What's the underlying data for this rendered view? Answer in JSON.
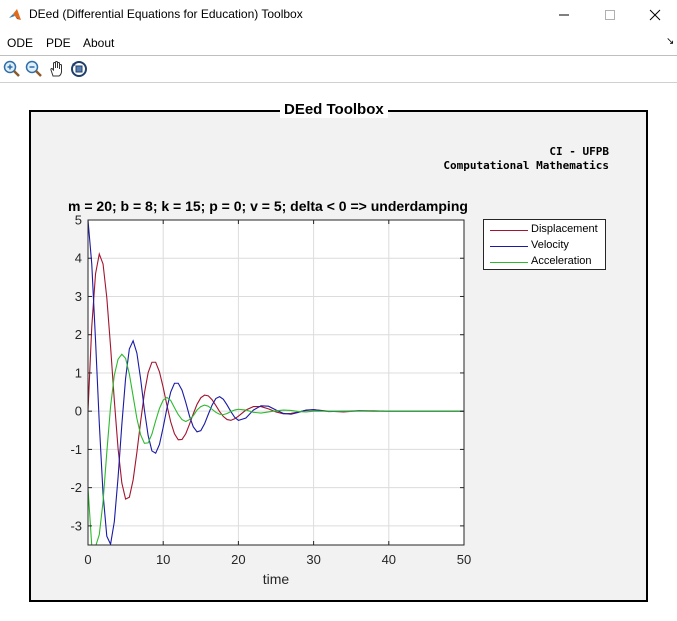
{
  "window": {
    "title": "DEed (Differential Equations for Education) Toolbox",
    "minimize_glyph": "—",
    "maximize_glyph": "☐",
    "close_glyph": "✕"
  },
  "menu": {
    "items": [
      {
        "label": "ODE"
      },
      {
        "label": "PDE"
      },
      {
        "label": "About"
      }
    ],
    "overflow_glyph": "↘"
  },
  "toolbar": {
    "buttons": [
      {
        "icon": "zoom-in-icon"
      },
      {
        "icon": "zoom-out-icon"
      },
      {
        "icon": "pan-hand-icon"
      },
      {
        "icon": "rotate-3d-icon"
      }
    ]
  },
  "panel": {
    "title": "DEed Toolbox",
    "credit_line1": "CI - UFPB",
    "credit_line2": "Computational Mathematics"
  },
  "chart_data": {
    "type": "line",
    "title": "m = 20; b = 8; k = 15; p = 0; v = 5; delta < 0 => underdamping",
    "xlabel": "time",
    "ylabel": "",
    "xlim": [
      0,
      50
    ],
    "ylim": [
      -3.5,
      5
    ],
    "xticks": [
      0,
      10,
      20,
      30,
      40,
      50
    ],
    "yticks": [
      -3,
      -2,
      -1,
      0,
      1,
      2,
      3,
      4,
      5
    ],
    "grid": true,
    "legend_position": "outside-top-right",
    "params": {
      "m": 20,
      "b": 8,
      "k": 15,
      "p": 0,
      "v": 5
    },
    "series": [
      {
        "name": "Displacement",
        "color": "#a2142f",
        "x": [
          0,
          0.5,
          1,
          1.5,
          2,
          2.5,
          3,
          3.5,
          4,
          4.5,
          5,
          5.5,
          6,
          6.5,
          7,
          7.5,
          8,
          8.5,
          9,
          9.5,
          10,
          10.5,
          11,
          11.5,
          12,
          12.5,
          13,
          13.5,
          14,
          14.5,
          15,
          15.5,
          16,
          16.5,
          17,
          17.5,
          18,
          18.5,
          19,
          19.5,
          20,
          21,
          22,
          23,
          24,
          25,
          26,
          27,
          28,
          29,
          30,
          32,
          34,
          36,
          38,
          40,
          42,
          44,
          46,
          48,
          50
        ],
        "y": [
          0,
          2.21,
          3.59,
          4.11,
          3.85,
          2.97,
          1.69,
          0.28,
          -0.98,
          -1.88,
          -2.3,
          -2.25,
          -1.8,
          -1.08,
          -0.27,
          0.47,
          1.01,
          1.28,
          1.28,
          1.03,
          0.62,
          0.15,
          -0.28,
          -0.59,
          -0.75,
          -0.74,
          -0.59,
          -0.34,
          -0.07,
          0.18,
          0.35,
          0.42,
          0.4,
          0.3,
          0.15,
          -0.01,
          -0.14,
          -0.22,
          -0.24,
          -0.2,
          -0.13,
          0.03,
          0.12,
          0.12,
          0.06,
          -0.02,
          -0.07,
          -0.06,
          -0.02,
          0.02,
          0.04,
          0,
          -0.02,
          0.01,
          0.01,
          0,
          0,
          0,
          0,
          0,
          0
        ]
      },
      {
        "name": "Velocity",
        "color": "#1a1aa6",
        "x": [
          0,
          0.5,
          1,
          1.5,
          2,
          2.5,
          3,
          3.5,
          4,
          4.5,
          5,
          5.5,
          6,
          6.5,
          7,
          7.5,
          8,
          8.5,
          9,
          9.5,
          10,
          10.5,
          11,
          11.5,
          12,
          12.5,
          13,
          13.5,
          14,
          14.5,
          15,
          15.5,
          16,
          16.5,
          17,
          17.5,
          18,
          18.5,
          19,
          19.5,
          20,
          21,
          22,
          23,
          24,
          25,
          26,
          27,
          28,
          29,
          30,
          32,
          34,
          36,
          38,
          40,
          42,
          44,
          46,
          48,
          50
        ],
        "y": [
          5,
          3.85,
          1.86,
          -0.31,
          -2.16,
          -3.27,
          -3.48,
          -2.89,
          -1.73,
          -0.35,
          0.86,
          1.63,
          1.84,
          1.52,
          0.84,
          0.03,
          -0.64,
          -1.04,
          -1.1,
          -0.87,
          -0.42,
          0.08,
          0.5,
          0.73,
          0.73,
          0.55,
          0.23,
          -0.13,
          -0.41,
          -0.54,
          -0.51,
          -0.33,
          -0.08,
          0.16,
          0.33,
          0.38,
          0.31,
          0.16,
          -0.01,
          -0.16,
          -0.24,
          -0.18,
          0.03,
          0.14,
          0.13,
          0.03,
          -0.06,
          -0.08,
          -0.03,
          0.03,
          0.04,
          -0.01,
          0,
          0.01,
          0,
          0,
          0,
          0,
          0,
          0,
          0
        ]
      },
      {
        "name": "Acceleration",
        "color": "#2cba2c",
        "x": [
          0,
          0.5,
          1,
          1.5,
          2,
          2.5,
          3,
          3.5,
          4,
          4.5,
          5,
          5.5,
          6,
          6.5,
          7,
          7.5,
          8,
          8.5,
          9,
          9.5,
          10,
          10.5,
          11,
          11.5,
          12,
          12.5,
          13,
          13.5,
          14,
          14.5,
          15,
          15.5,
          16,
          16.5,
          17,
          17.5,
          18,
          18.5,
          19,
          19.5,
          20,
          21,
          22,
          23,
          24,
          25,
          26,
          27,
          28,
          29,
          30,
          32,
          34,
          36,
          38,
          40,
          42,
          44,
          46,
          48,
          50
        ],
        "y": [
          -2,
          -3.52,
          -3.54,
          -3.23,
          -2.37,
          -1.08,
          0.12,
          0.94,
          1.36,
          1.49,
          1.38,
          0.97,
          0.39,
          -0.19,
          -0.62,
          -0.84,
          -0.83,
          -0.6,
          -0.25,
          0.07,
          0.29,
          0.36,
          0.28,
          0.09,
          -0.09,
          -0.22,
          -0.27,
          -0.22,
          -0.12,
          0.03,
          0.12,
          0.16,
          0.13,
          0.05,
          -0.03,
          -0.08,
          -0.09,
          -0.06,
          -0.01,
          0.03,
          0.05,
          0.03,
          -0.03,
          -0.05,
          -0.02,
          0.01,
          0.03,
          0.02,
          -0.01,
          -0.02,
          0,
          0,
          0,
          0,
          0,
          0,
          0,
          0,
          0,
          0,
          0
        ]
      }
    ]
  }
}
